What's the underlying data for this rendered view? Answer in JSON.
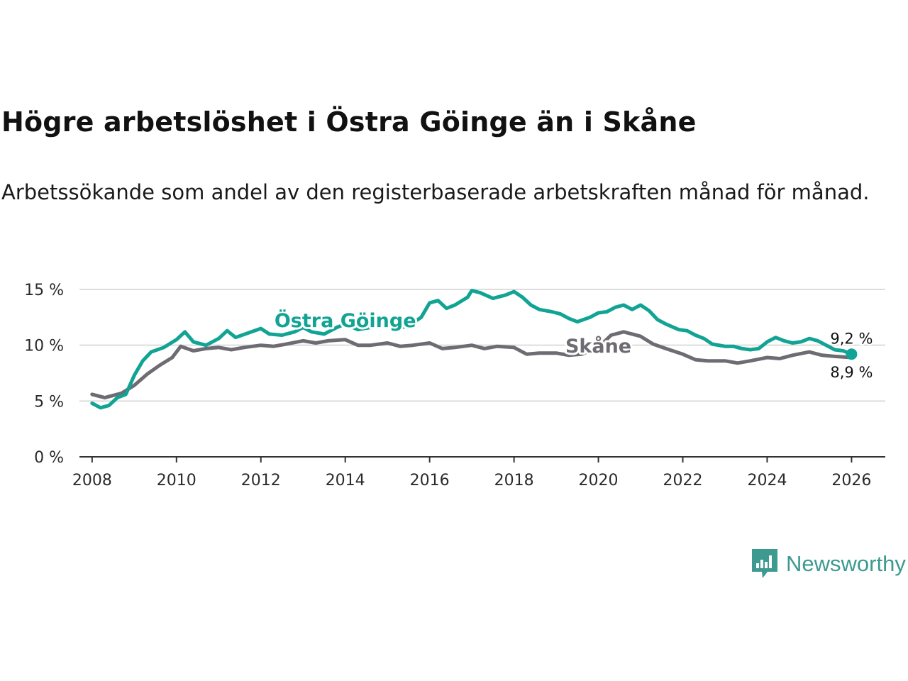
{
  "title": "Högre arbetslöshet i Östra Göinge än i Skåne",
  "subtitle": "Arbetssökande som andel av den registerbaserade arbetskraften månad för månad.",
  "brand": {
    "name": "Newsworthy",
    "icon": "newsworthy-chart-bubble-icon",
    "color": "#3c9a91"
  },
  "colors": {
    "local": "#11a393",
    "region": "#6e6c72",
    "grid": "#dddddd",
    "axis": "#333333"
  },
  "chart_data": {
    "type": "line",
    "ylim": [
      0,
      15
    ],
    "xlim": [
      2007.7,
      2026.8
    ],
    "y_ticks": [
      {
        "value": 0,
        "label": "0 %"
      },
      {
        "value": 5,
        "label": "5 %"
      },
      {
        "value": 10,
        "label": "10 %"
      },
      {
        "value": 15,
        "label": "15 %"
      }
    ],
    "x_ticks": [
      {
        "value": 2008,
        "label": "2008"
      },
      {
        "value": 2010,
        "label": "2010"
      },
      {
        "value": 2012,
        "label": "2012"
      },
      {
        "value": 2014,
        "label": "2014"
      },
      {
        "value": 2016,
        "label": "2016"
      },
      {
        "value": 2018,
        "label": "2018"
      },
      {
        "value": 2020,
        "label": "2020"
      },
      {
        "value": 2022,
        "label": "2022"
      },
      {
        "value": 2024,
        "label": "2024"
      },
      {
        "value": 2026,
        "label": "2026"
      }
    ],
    "series": [
      {
        "name": "Skåne",
        "label": "Skåne",
        "color": "#6e6c72",
        "end_label": "8,9 %",
        "points": [
          [
            2008.0,
            5.6
          ],
          [
            2008.3,
            5.3
          ],
          [
            2008.7,
            5.7
          ],
          [
            2009.0,
            6.4
          ],
          [
            2009.3,
            7.4
          ],
          [
            2009.6,
            8.2
          ],
          [
            2009.9,
            8.9
          ],
          [
            2010.1,
            9.9
          ],
          [
            2010.4,
            9.5
          ],
          [
            2010.7,
            9.7
          ],
          [
            2011.0,
            9.8
          ],
          [
            2011.3,
            9.6
          ],
          [
            2011.6,
            9.8
          ],
          [
            2012.0,
            10.0
          ],
          [
            2012.3,
            9.9
          ],
          [
            2012.6,
            10.1
          ],
          [
            2013.0,
            10.4
          ],
          [
            2013.3,
            10.2
          ],
          [
            2013.6,
            10.4
          ],
          [
            2014.0,
            10.5
          ],
          [
            2014.3,
            10.0
          ],
          [
            2014.6,
            10.0
          ],
          [
            2015.0,
            10.2
          ],
          [
            2015.3,
            9.9
          ],
          [
            2015.6,
            10.0
          ],
          [
            2016.0,
            10.2
          ],
          [
            2016.3,
            9.7
          ],
          [
            2016.6,
            9.8
          ],
          [
            2017.0,
            10.0
          ],
          [
            2017.3,
            9.7
          ],
          [
            2017.6,
            9.9
          ],
          [
            2018.0,
            9.8
          ],
          [
            2018.3,
            9.2
          ],
          [
            2018.6,
            9.3
          ],
          [
            2019.0,
            9.3
          ],
          [
            2019.3,
            9.1
          ],
          [
            2019.6,
            9.2
          ],
          [
            2020.0,
            9.8
          ],
          [
            2020.3,
            10.9
          ],
          [
            2020.6,
            11.2
          ],
          [
            2021.0,
            10.8
          ],
          [
            2021.3,
            10.1
          ],
          [
            2021.6,
            9.7
          ],
          [
            2022.0,
            9.2
          ],
          [
            2022.3,
            8.7
          ],
          [
            2022.6,
            8.6
          ],
          [
            2023.0,
            8.6
          ],
          [
            2023.3,
            8.4
          ],
          [
            2023.6,
            8.6
          ],
          [
            2024.0,
            8.9
          ],
          [
            2024.3,
            8.8
          ],
          [
            2024.6,
            9.1
          ],
          [
            2025.0,
            9.4
          ],
          [
            2025.3,
            9.1
          ],
          [
            2025.6,
            9.0
          ],
          [
            2026.0,
            8.9
          ]
        ]
      },
      {
        "name": "Östra Göinge",
        "label": "Östra Göinge",
        "color": "#11a393",
        "end_label": "9,2 %",
        "points": [
          [
            2008.0,
            4.8
          ],
          [
            2008.2,
            4.4
          ],
          [
            2008.4,
            4.6
          ],
          [
            2008.6,
            5.3
          ],
          [
            2008.8,
            5.6
          ],
          [
            2009.0,
            7.3
          ],
          [
            2009.2,
            8.6
          ],
          [
            2009.4,
            9.4
          ],
          [
            2009.7,
            9.8
          ],
          [
            2010.0,
            10.5
          ],
          [
            2010.2,
            11.2
          ],
          [
            2010.4,
            10.3
          ],
          [
            2010.7,
            10.0
          ],
          [
            2011.0,
            10.6
          ],
          [
            2011.2,
            11.3
          ],
          [
            2011.4,
            10.7
          ],
          [
            2011.7,
            11.1
          ],
          [
            2012.0,
            11.5
          ],
          [
            2012.2,
            11.0
          ],
          [
            2012.5,
            10.9
          ],
          [
            2012.8,
            11.2
          ],
          [
            2013.0,
            11.6
          ],
          [
            2013.2,
            11.2
          ],
          [
            2013.5,
            11.0
          ],
          [
            2013.8,
            11.6
          ],
          [
            2014.0,
            11.9
          ],
          [
            2014.3,
            11.4
          ],
          [
            2014.6,
            11.6
          ],
          [
            2015.0,
            11.8
          ],
          [
            2015.3,
            11.5
          ],
          [
            2015.6,
            12.0
          ],
          [
            2015.8,
            12.5
          ],
          [
            2016.0,
            13.8
          ],
          [
            2016.2,
            14.0
          ],
          [
            2016.4,
            13.3
          ],
          [
            2016.6,
            13.6
          ],
          [
            2016.9,
            14.3
          ],
          [
            2017.0,
            14.9
          ],
          [
            2017.2,
            14.7
          ],
          [
            2017.5,
            14.2
          ],
          [
            2017.8,
            14.5
          ],
          [
            2018.0,
            14.8
          ],
          [
            2018.2,
            14.3
          ],
          [
            2018.4,
            13.6
          ],
          [
            2018.6,
            13.2
          ],
          [
            2018.9,
            13.0
          ],
          [
            2019.1,
            12.8
          ],
          [
            2019.3,
            12.4
          ],
          [
            2019.5,
            12.1
          ],
          [
            2019.8,
            12.5
          ],
          [
            2020.0,
            12.9
          ],
          [
            2020.2,
            13.0
          ],
          [
            2020.4,
            13.4
          ],
          [
            2020.6,
            13.6
          ],
          [
            2020.8,
            13.2
          ],
          [
            2021.0,
            13.6
          ],
          [
            2021.2,
            13.1
          ],
          [
            2021.4,
            12.3
          ],
          [
            2021.6,
            11.9
          ],
          [
            2021.9,
            11.4
          ],
          [
            2022.1,
            11.3
          ],
          [
            2022.3,
            10.9
          ],
          [
            2022.5,
            10.6
          ],
          [
            2022.7,
            10.1
          ],
          [
            2023.0,
            9.9
          ],
          [
            2023.2,
            9.9
          ],
          [
            2023.4,
            9.7
          ],
          [
            2023.6,
            9.6
          ],
          [
            2023.8,
            9.7
          ],
          [
            2024.0,
            10.3
          ],
          [
            2024.2,
            10.7
          ],
          [
            2024.4,
            10.4
          ],
          [
            2024.6,
            10.2
          ],
          [
            2024.8,
            10.3
          ],
          [
            2025.0,
            10.6
          ],
          [
            2025.2,
            10.4
          ],
          [
            2025.4,
            10.0
          ],
          [
            2025.6,
            9.6
          ],
          [
            2025.8,
            9.5
          ],
          [
            2026.0,
            9.2
          ]
        ]
      }
    ],
    "annotations": [
      {
        "text": "Östra Göinge",
        "series": "Östra Göinge",
        "at_x": 2014.0,
        "at_y": 12.2
      },
      {
        "text": "Skåne",
        "series": "Skåne",
        "at_x": 2020.0,
        "at_y": 9.9
      }
    ]
  }
}
